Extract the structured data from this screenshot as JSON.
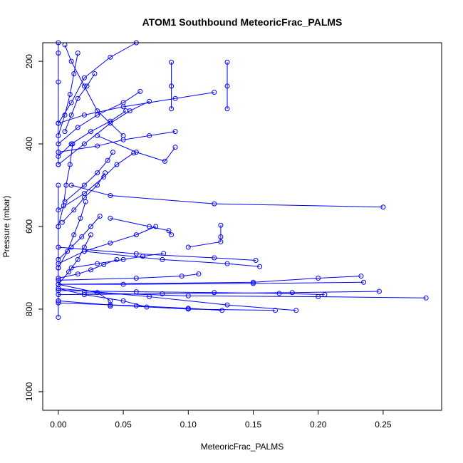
{
  "chart_data": {
    "type": "line",
    "title": "ATOM1 Southbound MeteoricFrac_PALMS",
    "xlabel": "MeteoricFrac_PALMS",
    "ylabel": "Pressure (mbar)",
    "xlim": [
      -0.012,
      0.295
    ],
    "ylim": [
      1045,
      155
    ],
    "y_reversed": true,
    "x_ticks": [
      0.0,
      0.05,
      0.1,
      0.15,
      0.2,
      0.25
    ],
    "x_tick_labels": [
      "0.00",
      "0.05",
      "0.10",
      "0.15",
      "0.20",
      "0.25"
    ],
    "y_ticks": [
      200,
      400,
      600,
      800,
      1000
    ],
    "y_tick_labels": [
      "200",
      "400",
      "600",
      "800",
      "1000"
    ],
    "color": "#0000ff",
    "marker": "open-circle",
    "grid": false,
    "legend": "none",
    "series": [
      {
        "x": [
          0.13,
          0.13,
          0.13
        ],
        "y": [
          202,
          260,
          315
        ]
      },
      {
        "x": [
          0.087,
          0.087,
          0.087
        ],
        "y": [
          202,
          260,
          315
        ]
      },
      {
        "x": [
          0.25,
          0.12,
          0.04,
          0.01
        ],
        "y": [
          553,
          545,
          525,
          500
        ]
      },
      {
        "x": [
          0.09,
          0.082,
          0.06,
          0.03
        ],
        "y": [
          408,
          442,
          420,
          380
        ]
      },
      {
        "x": [
          0.283,
          0.2,
          0.1,
          0.02
        ],
        "y": [
          773,
          770,
          768,
          760
        ]
      },
      {
        "x": [
          0.247,
          0.18,
          0.08,
          0.0
        ],
        "y": [
          757,
          760,
          763,
          765
        ]
      },
      {
        "x": [
          0.233,
          0.2,
          0.15,
          0.0
        ],
        "y": [
          720,
          725,
          735,
          740
        ]
      },
      {
        "x": [
          0.235,
          0.15,
          0.05,
          0.0
        ],
        "y": [
          735,
          738,
          740,
          740
        ]
      },
      {
        "x": [
          0.183,
          0.13,
          0.07,
          0.0
        ],
        "y": [
          803,
          790,
          770,
          750
        ]
      },
      {
        "x": [
          0.167,
          0.1,
          0.04,
          0.0
        ],
        "y": [
          803,
          800,
          790,
          780
        ]
      },
      {
        "x": [
          0.155,
          0.13,
          0.08,
          0.02
        ],
        "y": [
          697,
          690,
          680,
          660
        ]
      },
      {
        "x": [
          0.152,
          0.12,
          0.06,
          0.0
        ],
        "y": [
          682,
          676,
          666,
          650
        ]
      },
      {
        "x": [
          0.125,
          0.125,
          0.125,
          0.1
        ],
        "y": [
          597,
          625,
          637,
          650
        ]
      },
      {
        "x": [
          0.087,
          0.085,
          0.07,
          0.04
        ],
        "y": [
          620,
          610,
          600,
          580
        ]
      },
      {
        "x": [
          0.108,
          0.095,
          0.06,
          0.0
        ],
        "y": [
          715,
          720,
          725,
          730
        ]
      },
      {
        "x": [
          0.126,
          0.1,
          0.06,
          0.0
        ],
        "y": [
          803,
          798,
          792,
          785
        ]
      },
      {
        "x": [
          0.04,
          0.04,
          0.03,
          0.0
        ],
        "y": [
          793,
          780,
          760,
          740
        ]
      },
      {
        "x": [
          0.068,
          0.05,
          0.02,
          0.0
        ],
        "y": [
          795,
          780,
          765,
          750
        ]
      },
      {
        "x": [
          0.0,
          0.0,
          0.0,
          0.0,
          0.0
        ],
        "y": [
          820,
          780,
          700,
          600,
          500
        ]
      },
      {
        "x": [
          0.0,
          0.0,
          0.0,
          0.0,
          0.0
        ],
        "y": [
          450,
          350,
          250,
          180,
          155
        ]
      },
      {
        "x": [
          0.005,
          0.01,
          0.02,
          0.03,
          0.05
        ],
        "y": [
          160,
          200,
          260,
          320,
          380
        ]
      },
      {
        "x": [
          0.06,
          0.04,
          0.02,
          0.01,
          0.0
        ],
        "y": [
          155,
          190,
          240,
          300,
          350
        ]
      },
      {
        "x": [
          0.063,
          0.05,
          0.03,
          0.015,
          0.0
        ],
        "y": [
          273,
          300,
          330,
          360,
          400
        ]
      },
      {
        "x": [
          0.07,
          0.055,
          0.04,
          0.02,
          0.0
        ],
        "y": [
          297,
          320,
          350,
          400,
          450
        ]
      },
      {
        "x": [
          0.042,
          0.038,
          0.03,
          0.02,
          0.005
        ],
        "y": [
          420,
          440,
          470,
          500,
          540
        ]
      },
      {
        "x": [
          0.058,
          0.045,
          0.035,
          0.02,
          0.0
        ],
        "y": [
          422,
          450,
          480,
          520,
          560
        ]
      },
      {
        "x": [
          0.032,
          0.025,
          0.018,
          0.01,
          0.0
        ],
        "y": [
          575,
          600,
          625,
          650,
          680
        ]
      },
      {
        "x": [
          0.075,
          0.06,
          0.04,
          0.02,
          0.0
        ],
        "y": [
          600,
          620,
          640,
          660,
          690
        ]
      },
      {
        "x": [
          0.081,
          0.065,
          0.05,
          0.03,
          0.01
        ],
        "y": [
          665,
          672,
          680,
          690,
          700
        ]
      },
      {
        "x": [
          0.045,
          0.035,
          0.025,
          0.015,
          0.0
        ],
        "y": [
          680,
          692,
          705,
          715,
          725
        ]
      },
      {
        "x": [
          0.205,
          0.17,
          0.12,
          0.06,
          0.0
        ],
        "y": [
          765,
          762,
          760,
          758,
          755
        ]
      },
      {
        "x": [
          0.09,
          0.07,
          0.05,
          0.03,
          0.0
        ],
        "y": [
          370,
          380,
          390,
          405,
          420
        ]
      },
      {
        "x": [
          0.12,
          0.09,
          0.05,
          0.02,
          0.0
        ],
        "y": [
          275,
          290,
          310,
          330,
          350
        ]
      },
      {
        "x": [
          0.052,
          0.04,
          0.025,
          0.01,
          0.0
        ],
        "y": [
          320,
          345,
          370,
          400,
          430
        ]
      },
      {
        "x": [
          0.028,
          0.022,
          0.015,
          0.01,
          0.005
        ],
        "y": [
          230,
          260,
          290,
          330,
          370
        ]
      },
      {
        "x": [
          0.036,
          0.03,
          0.02,
          0.012,
          0.003
        ],
        "y": [
          470,
          500,
          530,
          560,
          590
        ]
      },
      {
        "x": [
          0.021,
          0.017,
          0.012,
          0.007,
          0.0
        ],
        "y": [
          540,
          580,
          620,
          660,
          700
        ]
      },
      {
        "x": [
          0.015,
          0.012,
          0.009,
          0.005,
          0.0
        ],
        "y": [
          180,
          230,
          280,
          330,
          380
        ]
      },
      {
        "x": [
          0.011,
          0.009,
          0.006,
          0.004,
          0.0
        ],
        "y": [
          400,
          450,
          500,
          550,
          600
        ]
      },
      {
        "x": [
          0.025,
          0.02,
          0.015,
          0.008,
          0.0
        ],
        "y": [
          620,
          650,
          680,
          710,
          740
        ]
      }
    ]
  }
}
